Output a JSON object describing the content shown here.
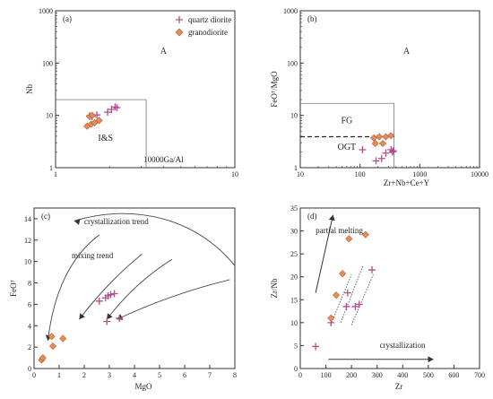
{
  "colors": {
    "quartz_diorite": "#b0508a",
    "granodiorite": "#e88c5c",
    "granodiorite_edge": "#b35f2e",
    "axis": "#333333"
  },
  "legend": [
    {
      "name": "quartz diorite",
      "marker": "plus"
    },
    {
      "name": "granodiorite",
      "marker": "diamond"
    }
  ],
  "chart_data": [
    {
      "panel": "(a)",
      "type": "scatter",
      "xlabel": "10000Ga/Al",
      "ylabel": "Nb",
      "xscale": "log",
      "yscale": "log",
      "xlim": [
        1,
        10
      ],
      "ylim": [
        1,
        1000
      ],
      "x_ticks": [
        "1",
        "10"
      ],
      "y_ticks": [
        "1",
        "10",
        "100",
        "1000"
      ],
      "fields": [
        "A",
        "I&S"
      ],
      "legend_position": "top-right",
      "series": [
        {
          "name": "quartz diorite",
          "marker": "plus",
          "points": [
            [
              1.55,
              9.8
            ],
            [
              1.6,
              9.5
            ],
            [
              1.7,
              10.2
            ],
            [
              1.95,
              11.5
            ],
            [
              2.05,
              13
            ],
            [
              2.15,
              14.5
            ],
            [
              2.2,
              14
            ]
          ]
        },
        {
          "name": "granodiorite",
          "marker": "diamond",
          "points": [
            [
              1.5,
              6.2
            ],
            [
              1.58,
              6.8
            ],
            [
              1.65,
              7.2
            ],
            [
              1.75,
              8.0
            ],
            [
              1.55,
              9.5
            ],
            [
              1.6,
              10.0
            ]
          ]
        }
      ]
    },
    {
      "panel": "(b)",
      "type": "scatter",
      "xlabel": "Zr+Nb+Ce+Y",
      "ylabel": "FeOᵀ/MgO",
      "xscale": "log",
      "yscale": "log",
      "xlim": [
        10,
        10000
      ],
      "ylim": [
        1,
        1000
      ],
      "x_ticks": [
        "10",
        "100",
        "1000",
        "10000"
      ],
      "y_ticks": [
        "1",
        "10",
        "100",
        "1000"
      ],
      "fields": [
        "A",
        "FG",
        "OGT"
      ],
      "series": [
        {
          "name": "quartz diorite",
          "marker": "plus",
          "points": [
            [
              110,
              2.2
            ],
            [
              185,
              1.35
            ],
            [
              230,
              1.5
            ],
            [
              270,
              1.9
            ],
            [
              330,
              2.2
            ],
            [
              350,
              2.0
            ],
            [
              360,
              2.1
            ]
          ]
        },
        {
          "name": "granodiorite",
          "marker": "diamond",
          "points": [
            [
              170,
              3.7
            ],
            [
              210,
              3.9
            ],
            [
              270,
              3.9
            ],
            [
              330,
              4.1
            ],
            [
              180,
              2.9
            ],
            [
              240,
              2.9
            ]
          ]
        }
      ]
    },
    {
      "panel": "(c)",
      "type": "scatter",
      "xlabel": "MgO",
      "ylabel": "FeOᵀ",
      "xlim": [
        0,
        8
      ],
      "ylim": [
        0,
        15
      ],
      "x_ticks": [
        "0",
        "1",
        "2",
        "3",
        "4",
        "5",
        "6",
        "7",
        "8"
      ],
      "y_ticks": [
        "0",
        "2",
        "4",
        "6",
        "8",
        "10",
        "12",
        "14"
      ],
      "annotations": [
        "crystallization trend",
        "mixing trend"
      ],
      "series": [
        {
          "name": "quartz diorite",
          "marker": "plus",
          "points": [
            [
              2.6,
              6.3
            ],
            [
              2.85,
              6.6
            ],
            [
              2.95,
              6.8
            ],
            [
              3.05,
              6.9
            ],
            [
              3.2,
              7.0
            ],
            [
              2.9,
              4.4
            ],
            [
              3.4,
              4.7
            ]
          ]
        },
        {
          "name": "granodiorite",
          "marker": "diamond",
          "points": [
            [
              0.3,
              0.8
            ],
            [
              0.35,
              1.0
            ],
            [
              0.75,
              2.1
            ],
            [
              0.7,
              3.0
            ],
            [
              1.15,
              2.8
            ]
          ]
        }
      ]
    },
    {
      "panel": "(d)",
      "type": "scatter",
      "xlabel": "Zr",
      "ylabel": "Zr/Nb",
      "xlim": [
        0,
        700
      ],
      "ylim": [
        0,
        35
      ],
      "x_ticks": [
        "0",
        "100",
        "200",
        "300",
        "400",
        "500",
        "600",
        "700"
      ],
      "y_ticks": [
        "0",
        "5",
        "10",
        "15",
        "20",
        "25",
        "30",
        "35"
      ],
      "annotations": [
        "partial melting",
        "crystallization"
      ],
      "series": [
        {
          "name": "quartz diorite",
          "marker": "plus",
          "points": [
            [
              60,
              4.8
            ],
            [
              120,
              10.0
            ],
            [
              180,
              13.5
            ],
            [
              185,
              16.5
            ],
            [
              215,
              13.5
            ],
            [
              230,
              14.0
            ],
            [
              280,
              21.5
            ]
          ]
        },
        {
          "name": "granodiorite",
          "marker": "diamond",
          "points": [
            [
              120,
              11.0
            ],
            [
              140,
              16.0
            ],
            [
              165,
              20.7
            ],
            [
              190,
              28.3
            ],
            [
              255,
              29.2
            ]
          ]
        }
      ]
    }
  ]
}
